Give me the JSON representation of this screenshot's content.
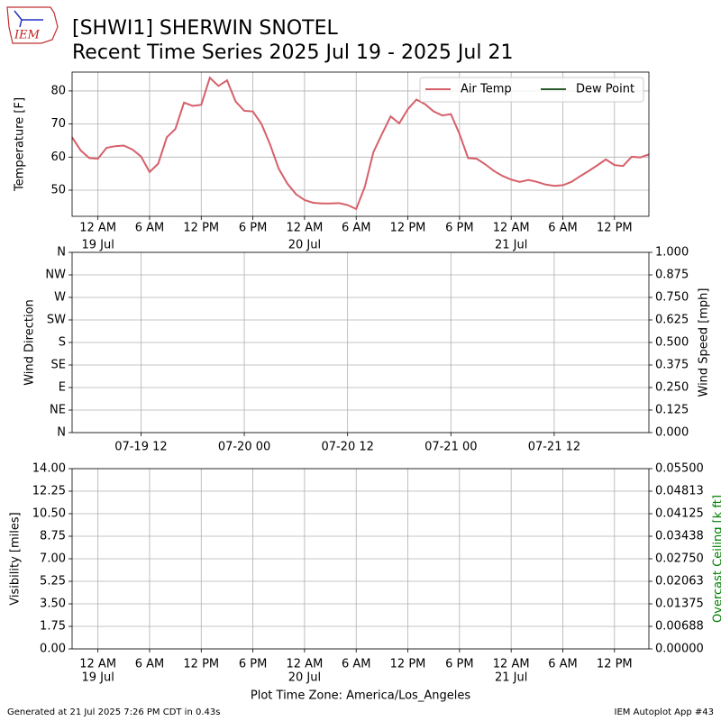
{
  "header": {
    "title_lines": [
      "[SHWI1] SHERWIN SNOTEL",
      "Recent Time Series 2025 Jul 19 - 2025 Jul 21"
    ],
    "logo": "IEM"
  },
  "footer": {
    "left": "Generated at 21 Jul 2025 7:26 PM CDT in 0.43s",
    "right": "IEM Autoplot App #43"
  },
  "chart_data": [
    {
      "type": "line",
      "ylabel": "Temperature [F]",
      "x": [
        "2025-07-18T21:00",
        "2025-07-18T22:00",
        "2025-07-18T23:00",
        "2025-07-19T00:00",
        "2025-07-19T01:00",
        "2025-07-19T02:00",
        "2025-07-19T03:00",
        "2025-07-19T04:00",
        "2025-07-19T05:00",
        "2025-07-19T06:00",
        "2025-07-19T07:00",
        "2025-07-19T08:00",
        "2025-07-19T09:00",
        "2025-07-19T10:00",
        "2025-07-19T11:00",
        "2025-07-19T12:00",
        "2025-07-19T13:00",
        "2025-07-19T14:00",
        "2025-07-19T15:00",
        "2025-07-19T16:00",
        "2025-07-19T17:00",
        "2025-07-19T18:00",
        "2025-07-19T19:00",
        "2025-07-19T20:00",
        "2025-07-19T21:00",
        "2025-07-19T22:00",
        "2025-07-19T23:00",
        "2025-07-20T00:00",
        "2025-07-20T01:00",
        "2025-07-20T02:00",
        "2025-07-20T03:00",
        "2025-07-20T04:00",
        "2025-07-20T05:00",
        "2025-07-20T06:00",
        "2025-07-20T07:00",
        "2025-07-20T08:00",
        "2025-07-20T09:00",
        "2025-07-20T10:00",
        "2025-07-20T11:00",
        "2025-07-20T12:00",
        "2025-07-20T13:00",
        "2025-07-20T14:00",
        "2025-07-20T15:00",
        "2025-07-20T16:00",
        "2025-07-20T17:00",
        "2025-07-20T18:00",
        "2025-07-20T19:00",
        "2025-07-20T20:00",
        "2025-07-20T21:00",
        "2025-07-20T22:00",
        "2025-07-20T23:00",
        "2025-07-21T00:00",
        "2025-07-21T01:00",
        "2025-07-21T02:00",
        "2025-07-21T03:00",
        "2025-07-21T04:00",
        "2025-07-21T05:00",
        "2025-07-21T06:00",
        "2025-07-21T07:00",
        "2025-07-21T08:00",
        "2025-07-21T09:00",
        "2025-07-21T10:00",
        "2025-07-21T11:00",
        "2025-07-21T12:00",
        "2025-07-21T13:00",
        "2025-07-21T14:00",
        "2025-07-21T15:00",
        "2025-07-21T16:00"
      ],
      "series": [
        {
          "name": "Air Temp",
          "color": "#d6606a",
          "values": [
            66,
            62,
            59.7,
            59.5,
            62.8,
            63.3,
            63.5,
            62.3,
            60.2,
            55.5,
            58,
            66,
            68.5,
            76.5,
            75.5,
            75.8,
            84,
            81.5,
            83.2,
            76.8,
            74,
            73.8,
            70,
            63.8,
            56.5,
            52,
            48.8,
            47,
            46.2,
            46,
            46,
            46.1,
            45.5,
            44.3,
            51,
            61.5,
            67,
            72.3,
            70.2,
            74.5,
            77.4,
            76,
            73.8,
            72.6,
            73,
            67,
            59.7,
            59.5,
            57.8,
            55.8,
            54.3,
            53.2,
            52.5,
            53.1,
            52.5,
            51.7,
            51.3,
            51.5,
            52.5,
            54.2,
            55.8,
            57.5,
            59.3,
            57.6,
            57.3,
            60.1,
            59.9,
            60.8
          ]
        },
        {
          "name": "Dew Point",
          "color": "#2a5a2a",
          "values": [
            null,
            null,
            null,
            null,
            null,
            null,
            null,
            null,
            null,
            null,
            null,
            null,
            null,
            null,
            null,
            null,
            null,
            null,
            null,
            null,
            null,
            null,
            null,
            null,
            null,
            null,
            null,
            null,
            null,
            null,
            null,
            null,
            null,
            null,
            null,
            null,
            null,
            null,
            null,
            null,
            null,
            null,
            null,
            null,
            null,
            null,
            null,
            null,
            null,
            null,
            null,
            null,
            null,
            null,
            null,
            null,
            null,
            null,
            null,
            null,
            null,
            null,
            null,
            null,
            null,
            null,
            null,
            null
          ]
        }
      ],
      "xlim": [
        "2025-07-18T21:00",
        "2025-07-21T16:00"
      ],
      "xticks": [
        {
          "value": "2025-07-19T00:00",
          "label": "12 AM"
        },
        {
          "value": "2025-07-19T06:00",
          "label": "6 AM"
        },
        {
          "value": "2025-07-19T12:00",
          "label": "12 PM"
        },
        {
          "value": "2025-07-19T18:00",
          "label": "6 PM"
        },
        {
          "value": "2025-07-20T00:00",
          "label": "12 AM"
        },
        {
          "value": "2025-07-20T06:00",
          "label": "6 AM"
        },
        {
          "value": "2025-07-20T12:00",
          "label": "12 PM"
        },
        {
          "value": "2025-07-20T18:00",
          "label": "6 PM"
        },
        {
          "value": "2025-07-21T00:00",
          "label": "12 AM"
        },
        {
          "value": "2025-07-21T06:00",
          "label": "6 AM"
        },
        {
          "value": "2025-07-21T12:00",
          "label": "12 PM"
        }
      ],
      "x_date_ticks": [
        {
          "value": "2025-07-19T00:00",
          "label": "19 Jul"
        },
        {
          "value": "2025-07-20T00:00",
          "label": "20 Jul"
        },
        {
          "value": "2025-07-21T00:00",
          "label": "21 Jul"
        }
      ],
      "ylim": [
        42.1,
        85.7
      ],
      "yticks": [
        50,
        60,
        70,
        80
      ],
      "grid": true,
      "legend": "upper right"
    },
    {
      "type": "line",
      "ylabel": "Wind Direction",
      "y2label": "Wind Speed [mph]",
      "series": [],
      "xlim": [
        "2025-07-19T04:00",
        "2025-07-21T23:00"
      ],
      "xticks": [
        {
          "value": "2025-07-19T12:00",
          "label": "07-19 12"
        },
        {
          "value": "2025-07-20T00:00",
          "label": "07-20 00"
        },
        {
          "value": "2025-07-20T12:00",
          "label": "07-20 12"
        },
        {
          "value": "2025-07-21T00:00",
          "label": "07-21 00"
        },
        {
          "value": "2025-07-21T12:00",
          "label": "07-21 12"
        }
      ],
      "ylim": [
        0,
        360
      ],
      "yticks": [
        {
          "value": 0,
          "label": "N"
        },
        {
          "value": 45,
          "label": "NE"
        },
        {
          "value": 90,
          "label": "E"
        },
        {
          "value": 135,
          "label": "SE"
        },
        {
          "value": 180,
          "label": "S"
        },
        {
          "value": 225,
          "label": "SW"
        },
        {
          "value": 270,
          "label": "W"
        },
        {
          "value": 315,
          "label": "NW"
        },
        {
          "value": 360,
          "label": "N"
        }
      ],
      "y2lim": [
        0,
        1
      ],
      "y2ticks": [
        {
          "value": 0,
          "label": "0.000"
        },
        {
          "value": 0.125,
          "label": "0.125"
        },
        {
          "value": 0.25,
          "label": "0.250"
        },
        {
          "value": 0.375,
          "label": "0.375"
        },
        {
          "value": 0.5,
          "label": "0.500"
        },
        {
          "value": 0.625,
          "label": "0.625"
        },
        {
          "value": 0.75,
          "label": "0.750"
        },
        {
          "value": 0.875,
          "label": "0.875"
        },
        {
          "value": 1,
          "label": "1.000"
        }
      ],
      "grid": true
    },
    {
      "type": "line",
      "ylabel": "Visibility [miles]",
      "y2label": "Overcast Ceiling [k ft]",
      "y2label_color": "#008000",
      "xlabel": "Plot Time Zone: America/Los_Angeles",
      "series": [],
      "xlim": [
        "2025-07-18T21:00",
        "2025-07-21T16:00"
      ],
      "xticks": [
        {
          "value": "2025-07-19T00:00",
          "label": "12 AM"
        },
        {
          "value": "2025-07-19T06:00",
          "label": "6 AM"
        },
        {
          "value": "2025-07-19T12:00",
          "label": "12 PM"
        },
        {
          "value": "2025-07-19T18:00",
          "label": "6 PM"
        },
        {
          "value": "2025-07-20T00:00",
          "label": "12 AM"
        },
        {
          "value": "2025-07-20T06:00",
          "label": "6 AM"
        },
        {
          "value": "2025-07-20T12:00",
          "label": "12 PM"
        },
        {
          "value": "2025-07-20T18:00",
          "label": "6 PM"
        },
        {
          "value": "2025-07-21T00:00",
          "label": "12 AM"
        },
        {
          "value": "2025-07-21T06:00",
          "label": "6 AM"
        },
        {
          "value": "2025-07-21T12:00",
          "label": "12 PM"
        }
      ],
      "x_date_ticks": [
        {
          "value": "2025-07-19T00:00",
          "label": "19 Jul"
        },
        {
          "value": "2025-07-20T00:00",
          "label": "20 Jul"
        },
        {
          "value": "2025-07-21T00:00",
          "label": "21 Jul"
        }
      ],
      "ylim": [
        0,
        14
      ],
      "yticks": [
        {
          "value": 0,
          "label": "0.00"
        },
        {
          "value": 1.75,
          "label": "1.75"
        },
        {
          "value": 3.5,
          "label": "3.50"
        },
        {
          "value": 5.25,
          "label": "5.25"
        },
        {
          "value": 7,
          "label": "7.00"
        },
        {
          "value": 8.75,
          "label": "8.75"
        },
        {
          "value": 10.5,
          "label": "10.50"
        },
        {
          "value": 12.25,
          "label": "12.25"
        },
        {
          "value": 14,
          "label": "14.00"
        }
      ],
      "y2lim": [
        0,
        0.055
      ],
      "y2ticks": [
        {
          "value": 0,
          "label": "0.00000"
        },
        {
          "value": 0.006875,
          "label": "0.00688"
        },
        {
          "value": 0.01375,
          "label": "0.01375"
        },
        {
          "value": 0.020625,
          "label": "0.02063"
        },
        {
          "value": 0.0275,
          "label": "0.02750"
        },
        {
          "value": 0.034375,
          "label": "0.03438"
        },
        {
          "value": 0.04125,
          "label": "0.04125"
        },
        {
          "value": 0.048125,
          "label": "0.04813"
        },
        {
          "value": 0.055,
          "label": "0.05500"
        }
      ],
      "grid": true
    }
  ]
}
